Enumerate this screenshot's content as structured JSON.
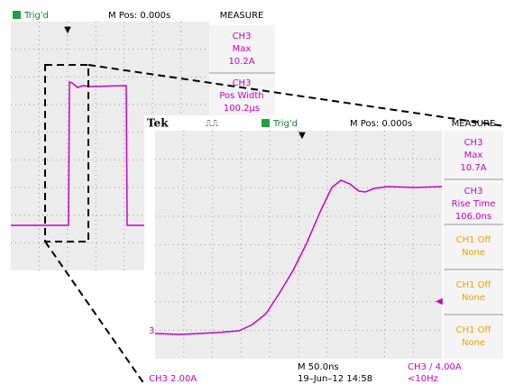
{
  "background_scope": {
    "trigger_status": "Trig'd",
    "position": "M Pos: 0.000s",
    "measure_title": "MEASURE",
    "measurements": [
      {
        "channel": "CH3",
        "name": "Max",
        "value": "10.2A"
      },
      {
        "channel": "CH3",
        "name": "Pos Width",
        "value": "100.2µs"
      }
    ]
  },
  "foreground_scope": {
    "brand": "Tek",
    "trigger_status": "Trig'd",
    "position": "M Pos: 0.000s",
    "measure_title": "MEASURE",
    "measurements": [
      {
        "channel": "CH3",
        "name": "Max",
        "value": "10.7A"
      },
      {
        "channel": "CH3",
        "name": "Rise Time",
        "value": "106.0ns"
      },
      {
        "name": "CH1 Off",
        "value": "None"
      },
      {
        "name": "CH1 Off",
        "value": "None"
      },
      {
        "name": "CH1 Off",
        "value": "None"
      }
    ],
    "channel_marker": "3",
    "timebase": "M 50.0ns",
    "channel_scale": "CH3  2.00A",
    "date": "19–Jun–12 14:58",
    "trigger_setting": "CH3 ∕ 4.00A",
    "frequency": "<10Hz"
  }
}
